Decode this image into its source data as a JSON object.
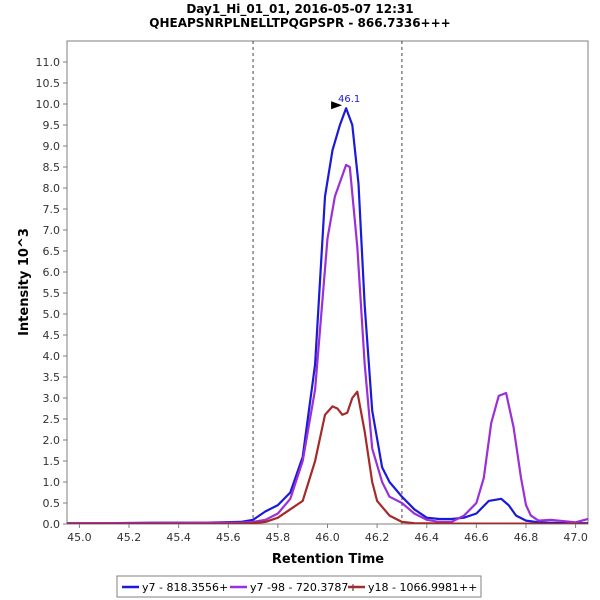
{
  "chart_data": {
    "type": "line",
    "title": "Day1_Hi_01_01, 2016-05-07 12:31",
    "subtitle": "QHEAPSNRPLNELLTPQGPSPR - 866.7336+++",
    "xlabel": "Retention Time",
    "ylabel": "Intensity 10^3",
    "xlim": [
      44.95,
      47.05
    ],
    "ylim": [
      0,
      11.5
    ],
    "x_ticks": [
      "45.0",
      "45.2",
      "45.4",
      "45.6",
      "45.8",
      "46.0",
      "46.2",
      "46.4",
      "46.6",
      "46.8",
      "47.0"
    ],
    "y_ticks": [
      "0.0",
      "0.5",
      "1.0",
      "1.5",
      "2.0",
      "2.5",
      "3.0",
      "3.5",
      "4.0",
      "4.5",
      "5.0",
      "5.5",
      "6.0",
      "6.5",
      "7.0",
      "7.5",
      "8.0",
      "8.5",
      "9.0",
      "9.5",
      "10.0",
      "10.5",
      "11.0"
    ],
    "vlines": [
      45.7,
      46.3
    ],
    "peak_annotation": {
      "x": 46.075,
      "y": 9.9,
      "label": "46.1"
    },
    "series": [
      {
        "name": "y7 - 818.3556+",
        "color": "#1a1ad8",
        "x": [
          44.95,
          45.1,
          45.3,
          45.5,
          45.65,
          45.7,
          45.75,
          45.8,
          45.85,
          45.9,
          45.95,
          45.99,
          46.02,
          46.05,
          46.075,
          46.1,
          46.125,
          46.15,
          46.18,
          46.22,
          46.25,
          46.3,
          46.35,
          46.4,
          46.45,
          46.5,
          46.55,
          46.6,
          46.65,
          46.7,
          46.73,
          46.76,
          46.8,
          46.85,
          46.9,
          47.0,
          47.05
        ],
        "values": [
          0.02,
          0.02,
          0.03,
          0.03,
          0.05,
          0.1,
          0.3,
          0.45,
          0.75,
          1.6,
          3.8,
          7.8,
          8.9,
          9.5,
          9.9,
          9.5,
          8.1,
          5.2,
          2.7,
          1.35,
          1.0,
          0.65,
          0.35,
          0.15,
          0.12,
          0.12,
          0.15,
          0.25,
          0.55,
          0.6,
          0.45,
          0.2,
          0.08,
          0.04,
          0.03,
          0.02,
          0.02
        ]
      },
      {
        "name": "y7 -98 - 720.3787+",
        "color": "#9b30d9",
        "x": [
          44.95,
          45.1,
          45.3,
          45.5,
          45.65,
          45.7,
          45.75,
          45.8,
          45.85,
          45.9,
          45.95,
          46.0,
          46.03,
          46.06,
          46.075,
          46.09,
          46.12,
          46.15,
          46.18,
          46.22,
          46.25,
          46.3,
          46.35,
          46.4,
          46.45,
          46.5,
          46.55,
          46.6,
          46.63,
          46.66,
          46.69,
          46.72,
          46.75,
          46.78,
          46.8,
          46.82,
          46.85,
          46.9,
          47.0,
          47.05
        ],
        "values": [
          0.02,
          0.02,
          0.02,
          0.03,
          0.03,
          0.05,
          0.1,
          0.25,
          0.6,
          1.5,
          3.2,
          6.8,
          7.8,
          8.3,
          8.55,
          8.5,
          6.6,
          3.8,
          1.8,
          1.0,
          0.65,
          0.5,
          0.25,
          0.1,
          0.05,
          0.05,
          0.2,
          0.5,
          1.1,
          2.4,
          3.05,
          3.12,
          2.3,
          1.1,
          0.45,
          0.2,
          0.08,
          0.1,
          0.04,
          0.12
        ]
      },
      {
        "name": "y18 - 1066.9981++",
        "color": "#a52a2a",
        "x": [
          44.95,
          45.3,
          45.6,
          45.7,
          45.75,
          45.8,
          45.85,
          45.9,
          45.95,
          45.99,
          46.02,
          46.04,
          46.06,
          46.08,
          46.1,
          46.12,
          46.15,
          46.18,
          46.2,
          46.25,
          46.3,
          46.35,
          46.5,
          46.7,
          46.8,
          46.9,
          47.0,
          47.05
        ],
        "values": [
          0.0,
          0.0,
          0.0,
          0.02,
          0.05,
          0.15,
          0.35,
          0.55,
          1.5,
          2.6,
          2.8,
          2.75,
          2.6,
          2.65,
          3.0,
          3.15,
          2.2,
          1.0,
          0.55,
          0.2,
          0.05,
          0.02,
          0.01,
          0.01,
          0.01,
          0.0,
          0.0,
          0.0
        ]
      }
    ]
  }
}
